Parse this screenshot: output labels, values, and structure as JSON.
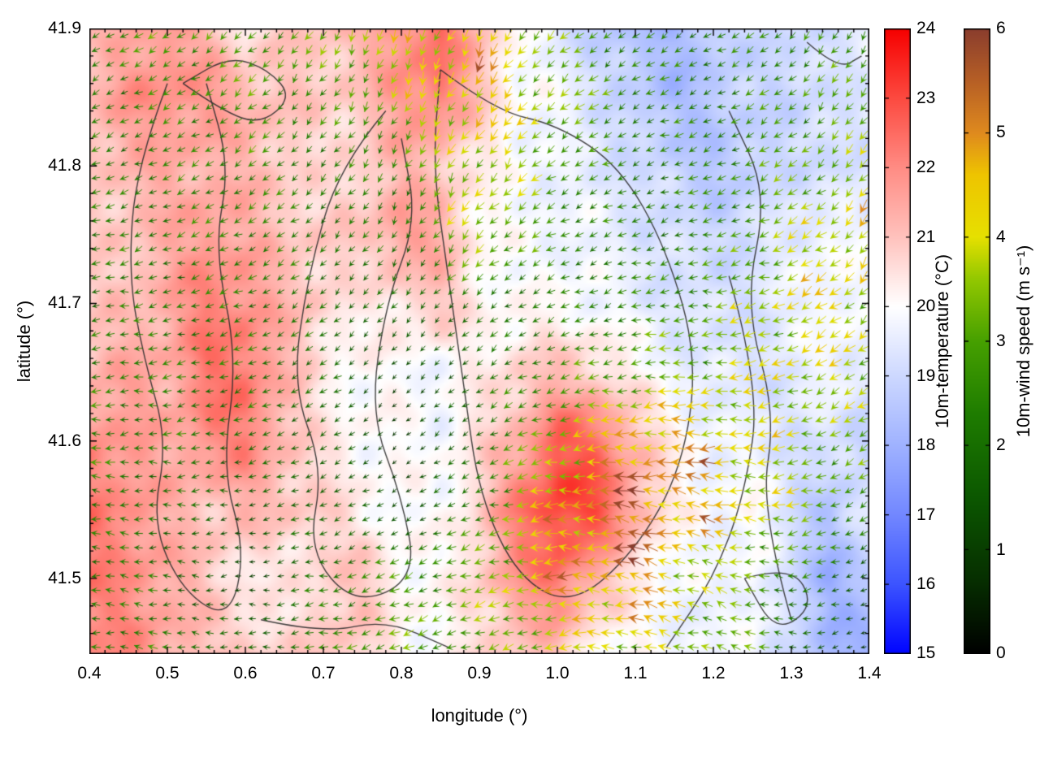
{
  "chart_data": {
    "type": "heatmap",
    "subtype": "temperature-field-with-wind-vector-overlay",
    "title": "",
    "xlabel": "longitude (°)",
    "ylabel": "latitude (°)",
    "xlim": [
      0.4,
      1.4
    ],
    "ylim": [
      41.445,
      41.9
    ],
    "xticks": [
      0.4,
      0.5,
      0.6,
      0.7,
      0.8,
      0.9,
      1.0,
      1.1,
      1.2,
      1.3,
      1.4
    ],
    "yticks": [
      41.5,
      41.6,
      41.7,
      41.8,
      41.9
    ],
    "grid": false,
    "colorbars": [
      {
        "id": "temperature",
        "label": "10m-temperature (°C)",
        "min": 15,
        "max": 24,
        "ticks": [
          15,
          16,
          17,
          18,
          19,
          20,
          21,
          22,
          23,
          24
        ],
        "colormap": [
          [
            15,
            "#0004ff"
          ],
          [
            16,
            "#3c54ff"
          ],
          [
            17,
            "#7287ff"
          ],
          [
            18,
            "#9fb2ff"
          ],
          [
            19,
            "#cdd8ff"
          ],
          [
            19.7,
            "#f0f3ff"
          ],
          [
            20,
            "#ffffff"
          ],
          [
            20.4,
            "#ffe8e6"
          ],
          [
            21,
            "#ffc2bd"
          ],
          [
            22,
            "#ff8c84"
          ],
          [
            23,
            "#fc4a40"
          ],
          [
            24,
            "#f60000"
          ]
        ]
      },
      {
        "id": "wind",
        "label": "10m-wind speed (m s⁻¹)",
        "min": 0,
        "max": 6,
        "ticks": [
          0,
          1,
          2,
          3,
          4,
          5,
          6
        ],
        "colormap": [
          [
            0,
            "#000000"
          ],
          [
            0.7,
            "#062e00"
          ],
          [
            1.5,
            "#0b5700"
          ],
          [
            2.3,
            "#1e7c00"
          ],
          [
            3,
            "#46a000"
          ],
          [
            3.6,
            "#93c800"
          ],
          [
            4,
            "#e6e000"
          ],
          [
            4.6,
            "#eec400"
          ],
          [
            5,
            "#df8a1e"
          ],
          [
            5.5,
            "#b65f25"
          ],
          [
            6,
            "#8a3d2d"
          ]
        ]
      }
    ],
    "temperature_field": {
      "units": "°C",
      "lon": [
        0.4,
        0.45,
        0.5,
        0.55,
        0.6,
        0.65,
        0.7,
        0.75,
        0.8,
        0.85,
        0.9,
        0.95,
        1.0,
        1.05,
        1.1,
        1.15,
        1.2,
        1.25,
        1.3,
        1.35,
        1.4
      ],
      "lat": [
        41.45,
        41.5,
        41.55,
        41.6,
        41.65,
        41.7,
        41.75,
        41.8,
        41.85,
        41.9
      ],
      "values": [
        [
          22.0,
          22.0,
          21.5,
          21.0,
          21.0,
          20.5,
          21.0,
          20.8,
          20.2,
          20.0,
          20.5,
          21.0,
          21.0,
          20.2,
          20.0,
          19.8,
          19.5,
          20.0,
          19.0,
          18.2,
          18.0
        ],
        [
          22.2,
          22.0,
          21.5,
          21.0,
          20.3,
          20.2,
          20.8,
          21.0,
          20.2,
          20.0,
          20.8,
          21.8,
          22.5,
          21.3,
          20.3,
          19.8,
          19.6,
          20.0,
          19.0,
          18.0,
          18.5
        ],
        [
          22.3,
          22.0,
          21.3,
          21.0,
          21.2,
          21.0,
          20.8,
          20.2,
          20.0,
          19.9,
          20.8,
          22.3,
          23.2,
          23.0,
          21.5,
          20.2,
          19.8,
          20.1,
          19.2,
          18.5,
          19.5
        ],
        [
          22.0,
          21.7,
          21.4,
          22.0,
          22.2,
          21.2,
          20.4,
          20.1,
          20.0,
          19.9,
          20.6,
          21.3,
          22.8,
          22.5,
          21.2,
          20.2,
          19.7,
          19.6,
          19.3,
          19.2,
          18.8
        ],
        [
          21.2,
          21.5,
          21.4,
          22.3,
          22.4,
          21.3,
          20.3,
          20.0,
          20.0,
          19.8,
          20.2,
          20.8,
          21.0,
          20.8,
          20.2,
          19.7,
          19.4,
          19.3,
          19.4,
          19.8,
          19.6
        ],
        [
          20.8,
          21.0,
          21.5,
          22.2,
          22.0,
          21.2,
          20.8,
          20.2,
          20.6,
          21.0,
          20.3,
          19.9,
          20.1,
          19.8,
          19.6,
          19.3,
          19.2,
          19.3,
          19.6,
          20.0,
          19.7
        ],
        [
          20.7,
          21.0,
          21.3,
          21.8,
          21.4,
          21.0,
          20.8,
          20.9,
          21.8,
          21.4,
          20.2,
          19.8,
          19.8,
          19.7,
          19.4,
          19.2,
          19.0,
          19.2,
          19.5,
          19.9,
          19.6
        ],
        [
          21.0,
          21.2,
          21.4,
          21.3,
          21.2,
          20.9,
          20.4,
          20.8,
          21.2,
          21.0,
          20.2,
          19.9,
          19.7,
          19.4,
          19.2,
          18.8,
          18.5,
          18.7,
          19.2,
          19.0,
          19.3
        ],
        [
          21.2,
          21.8,
          22.0,
          21.8,
          21.3,
          21.0,
          20.8,
          21.0,
          21.8,
          22.3,
          21.0,
          20.0,
          19.8,
          19.3,
          18.7,
          18.3,
          18.5,
          19.0,
          18.9,
          19.2,
          19.5
        ],
        [
          21.0,
          21.3,
          21.8,
          21.2,
          20.4,
          20.8,
          21.0,
          21.2,
          22.0,
          22.5,
          21.2,
          20.0,
          19.4,
          18.8,
          18.4,
          18.2,
          18.6,
          19.1,
          19.0,
          19.3,
          19.6
        ]
      ]
    },
    "wind_field": {
      "speed_units": "m s⁻¹",
      "lon": [
        0.4,
        0.5,
        0.6,
        0.7,
        0.8,
        0.9,
        1.0,
        1.1,
        1.2,
        1.3,
        1.4
      ],
      "lat": [
        41.45,
        41.5,
        41.55,
        41.6,
        41.65,
        41.7,
        41.75,
        41.8,
        41.85,
        41.9
      ],
      "speed": [
        [
          2.5,
          2.2,
          1.8,
          2.5,
          3.0,
          3.0,
          3.5,
          4.0,
          3.5,
          2.0,
          0.8
        ],
        [
          2.5,
          2.0,
          1.0,
          2.2,
          2.8,
          3.2,
          4.5,
          5.0,
          3.5,
          2.5,
          1.5
        ],
        [
          2.2,
          2.0,
          1.5,
          2.0,
          1.2,
          2.5,
          4.5,
          5.5,
          4.5,
          3.5,
          2.5
        ],
        [
          2.5,
          2.2,
          2.0,
          1.8,
          0.8,
          2.0,
          3.5,
          5.0,
          4.5,
          3.5,
          3.0
        ],
        [
          2.5,
          2.3,
          2.2,
          2.0,
          1.0,
          2.0,
          2.5,
          3.0,
          3.5,
          4.0,
          3.5
        ],
        [
          2.3,
          2.2,
          2.3,
          2.0,
          1.8,
          2.0,
          2.2,
          2.5,
          3.0,
          4.0,
          4.0
        ],
        [
          2.2,
          2.3,
          2.5,
          2.2,
          2.0,
          3.8,
          2.5,
          2.2,
          2.5,
          3.5,
          4.5
        ],
        [
          2.2,
          2.3,
          2.5,
          2.3,
          2.5,
          4.0,
          3.0,
          2.2,
          2.5,
          3.0,
          3.5
        ],
        [
          2.3,
          2.5,
          2.8,
          2.5,
          3.5,
          4.5,
          3.5,
          2.5,
          2.2,
          2.8,
          3.0
        ],
        [
          2.5,
          2.8,
          3.0,
          3.2,
          4.0,
          4.5,
          3.0,
          2.5,
          2.2,
          2.5,
          2.8
        ]
      ],
      "direction_deg_math": [
        [
          170,
          175,
          180,
          190,
          200,
          200,
          190,
          170,
          160,
          180,
          200
        ],
        [
          170,
          175,
          185,
          195,
          205,
          195,
          180,
          165,
          160,
          185,
          205
        ],
        [
          175,
          180,
          190,
          200,
          210,
          200,
          185,
          170,
          165,
          190,
          210
        ],
        [
          180,
          185,
          195,
          210,
          220,
          210,
          195,
          180,
          175,
          195,
          215
        ],
        [
          185,
          190,
          200,
          215,
          230,
          215,
          200,
          190,
          185,
          200,
          220
        ],
        [
          190,
          195,
          205,
          220,
          235,
          220,
          205,
          195,
          190,
          205,
          225
        ],
        [
          195,
          200,
          210,
          225,
          240,
          230,
          210,
          200,
          195,
          210,
          230
        ],
        [
          200,
          205,
          215,
          230,
          245,
          235,
          215,
          205,
          200,
          215,
          235
        ],
        [
          205,
          210,
          220,
          235,
          250,
          240,
          220,
          210,
          205,
          220,
          240
        ],
        [
          210,
          215,
          225,
          240,
          255,
          245,
          225,
          215,
          210,
          225,
          245
        ]
      ]
    },
    "boundary_lines": [
      [
        [
          0.52,
          41.86
        ],
        [
          0.57,
          41.84
        ],
        [
          0.62,
          41.83
        ],
        [
          0.66,
          41.85
        ],
        [
          0.63,
          41.87
        ],
        [
          0.58,
          41.88
        ],
        [
          0.52,
          41.86
        ]
      ],
      [
        [
          0.5,
          41.86
        ],
        [
          0.46,
          41.8
        ],
        [
          0.45,
          41.72
        ],
        [
          0.47,
          41.66
        ],
        [
          0.5,
          41.6
        ],
        [
          0.48,
          41.54
        ],
        [
          0.52,
          41.49
        ],
        [
          0.58,
          41.47
        ],
        [
          0.6,
          41.52
        ],
        [
          0.57,
          41.58
        ],
        [
          0.59,
          41.66
        ],
        [
          0.56,
          41.74
        ],
        [
          0.58,
          41.8
        ],
        [
          0.55,
          41.86
        ]
      ],
      [
        [
          0.78,
          41.84
        ],
        [
          0.72,
          41.8
        ],
        [
          0.68,
          41.72
        ],
        [
          0.66,
          41.64
        ],
        [
          0.7,
          41.58
        ],
        [
          0.68,
          41.52
        ],
        [
          0.74,
          41.48
        ],
        [
          0.82,
          41.5
        ],
        [
          0.8,
          41.56
        ],
        [
          0.76,
          41.62
        ],
        [
          0.78,
          41.7
        ],
        [
          0.82,
          41.76
        ],
        [
          0.8,
          41.82
        ]
      ],
      [
        [
          0.85,
          41.87
        ],
        [
          0.92,
          41.84
        ],
        [
          1.0,
          41.83
        ],
        [
          1.08,
          41.8
        ],
        [
          1.14,
          41.74
        ],
        [
          1.18,
          41.66
        ],
        [
          1.16,
          41.58
        ],
        [
          1.1,
          41.52
        ],
        [
          1.02,
          41.48
        ],
        [
          0.95,
          41.5
        ],
        [
          0.9,
          41.56
        ],
        [
          0.88,
          41.64
        ],
        [
          0.86,
          41.72
        ],
        [
          0.84,
          41.8
        ],
        [
          0.85,
          41.87
        ]
      ],
      [
        [
          1.22,
          41.72
        ],
        [
          1.26,
          41.64
        ],
        [
          1.24,
          41.56
        ],
        [
          1.2,
          41.5
        ],
        [
          1.14,
          41.45
        ]
      ],
      [
        [
          1.3,
          41.47
        ],
        [
          1.26,
          41.55
        ],
        [
          1.28,
          41.62
        ],
        [
          1.24,
          41.7
        ],
        [
          1.27,
          41.78
        ],
        [
          1.22,
          41.84
        ]
      ],
      [
        [
          1.24,
          41.5
        ],
        [
          1.3,
          41.51
        ],
        [
          1.33,
          41.48
        ],
        [
          1.28,
          41.46
        ],
        [
          1.24,
          41.5
        ]
      ],
      [
        [
          0.62,
          41.47
        ],
        [
          0.7,
          41.46
        ],
        [
          0.78,
          41.47
        ],
        [
          0.86,
          41.45
        ]
      ],
      [
        [
          1.32,
          41.89
        ],
        [
          1.36,
          41.87
        ],
        [
          1.39,
          41.88
        ]
      ]
    ]
  }
}
